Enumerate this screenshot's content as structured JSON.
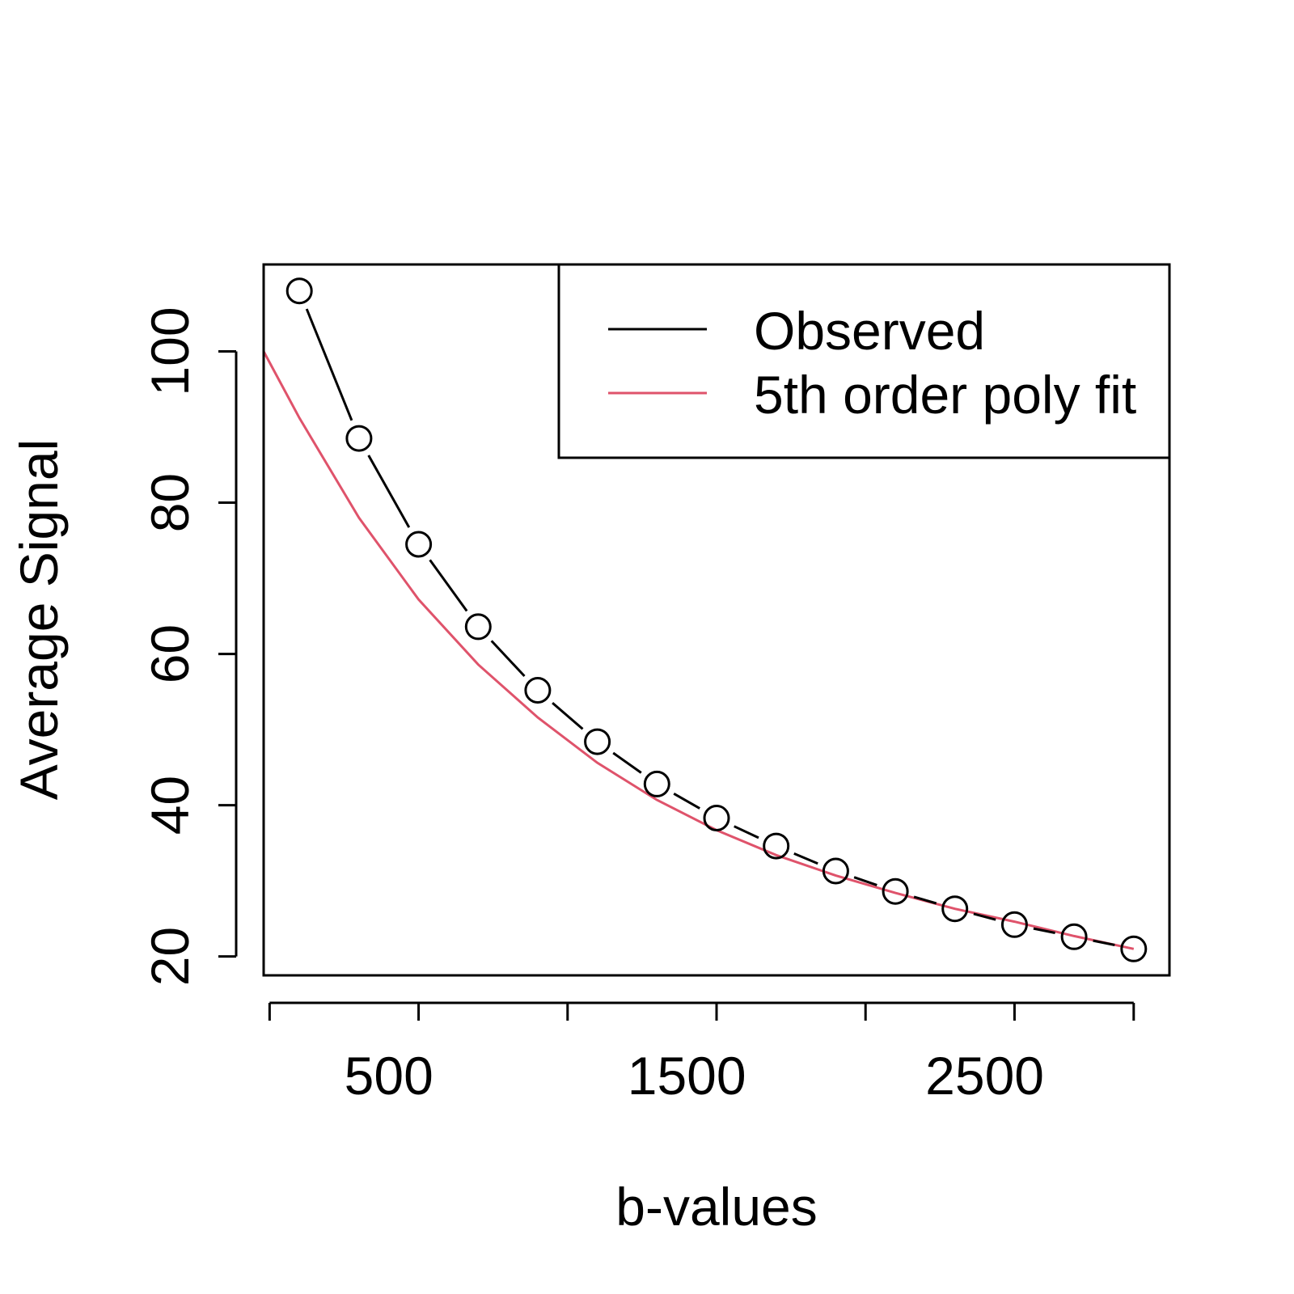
{
  "chart_data": {
    "type": "line",
    "title": "",
    "xlabel": "b-values",
    "ylabel": "Average Signal",
    "xlim": [
      80,
      3120
    ],
    "ylim": [
      17.5,
      111.5
    ],
    "xticks": [
      100,
      600,
      1100,
      1600,
      2100,
      2600,
      3000
    ],
    "xtick_labels": [
      {
        "value": 500,
        "label": "500"
      },
      {
        "value": 1500,
        "label": "1500"
      },
      {
        "value": 2500,
        "label": "2500"
      }
    ],
    "yticks": [
      20,
      40,
      60,
      80,
      100
    ],
    "ytick_labels": [
      "20",
      "40",
      "60",
      "80",
      "100"
    ],
    "legend": {
      "position": "top-right",
      "entries": [
        {
          "label": "Observed",
          "color": "#000000"
        },
        {
          "label": "5th order poly fit",
          "color": "#DF536B"
        }
      ]
    },
    "series": [
      {
        "name": "Observed",
        "style": "points-and-segments",
        "color": "#000000",
        "x": [
          200,
          400,
          600,
          800,
          1000,
          1200,
          1400,
          1600,
          1800,
          2000,
          2200,
          2400,
          2600,
          2800,
          3000
        ],
        "y": [
          108.0,
          88.5,
          74.5,
          63.6,
          55.2,
          48.4,
          42.8,
          38.3,
          34.6,
          31.3,
          28.6,
          26.3,
          24.2,
          22.6,
          21.0
        ]
      },
      {
        "name": "5th order poly fit",
        "style": "line",
        "color": "#DF536B",
        "x": [
          80,
          200,
          400,
          600,
          800,
          1000,
          1200,
          1400,
          1600,
          1800,
          2000,
          2200,
          2400,
          2600,
          2800,
          3000
        ],
        "y": [
          100.0,
          91.2,
          78.0,
          67.2,
          58.6,
          51.6,
          45.6,
          40.7,
          36.7,
          33.4,
          30.7,
          28.4,
          26.3,
          24.6,
          22.7,
          21.0
        ]
      }
    ]
  }
}
